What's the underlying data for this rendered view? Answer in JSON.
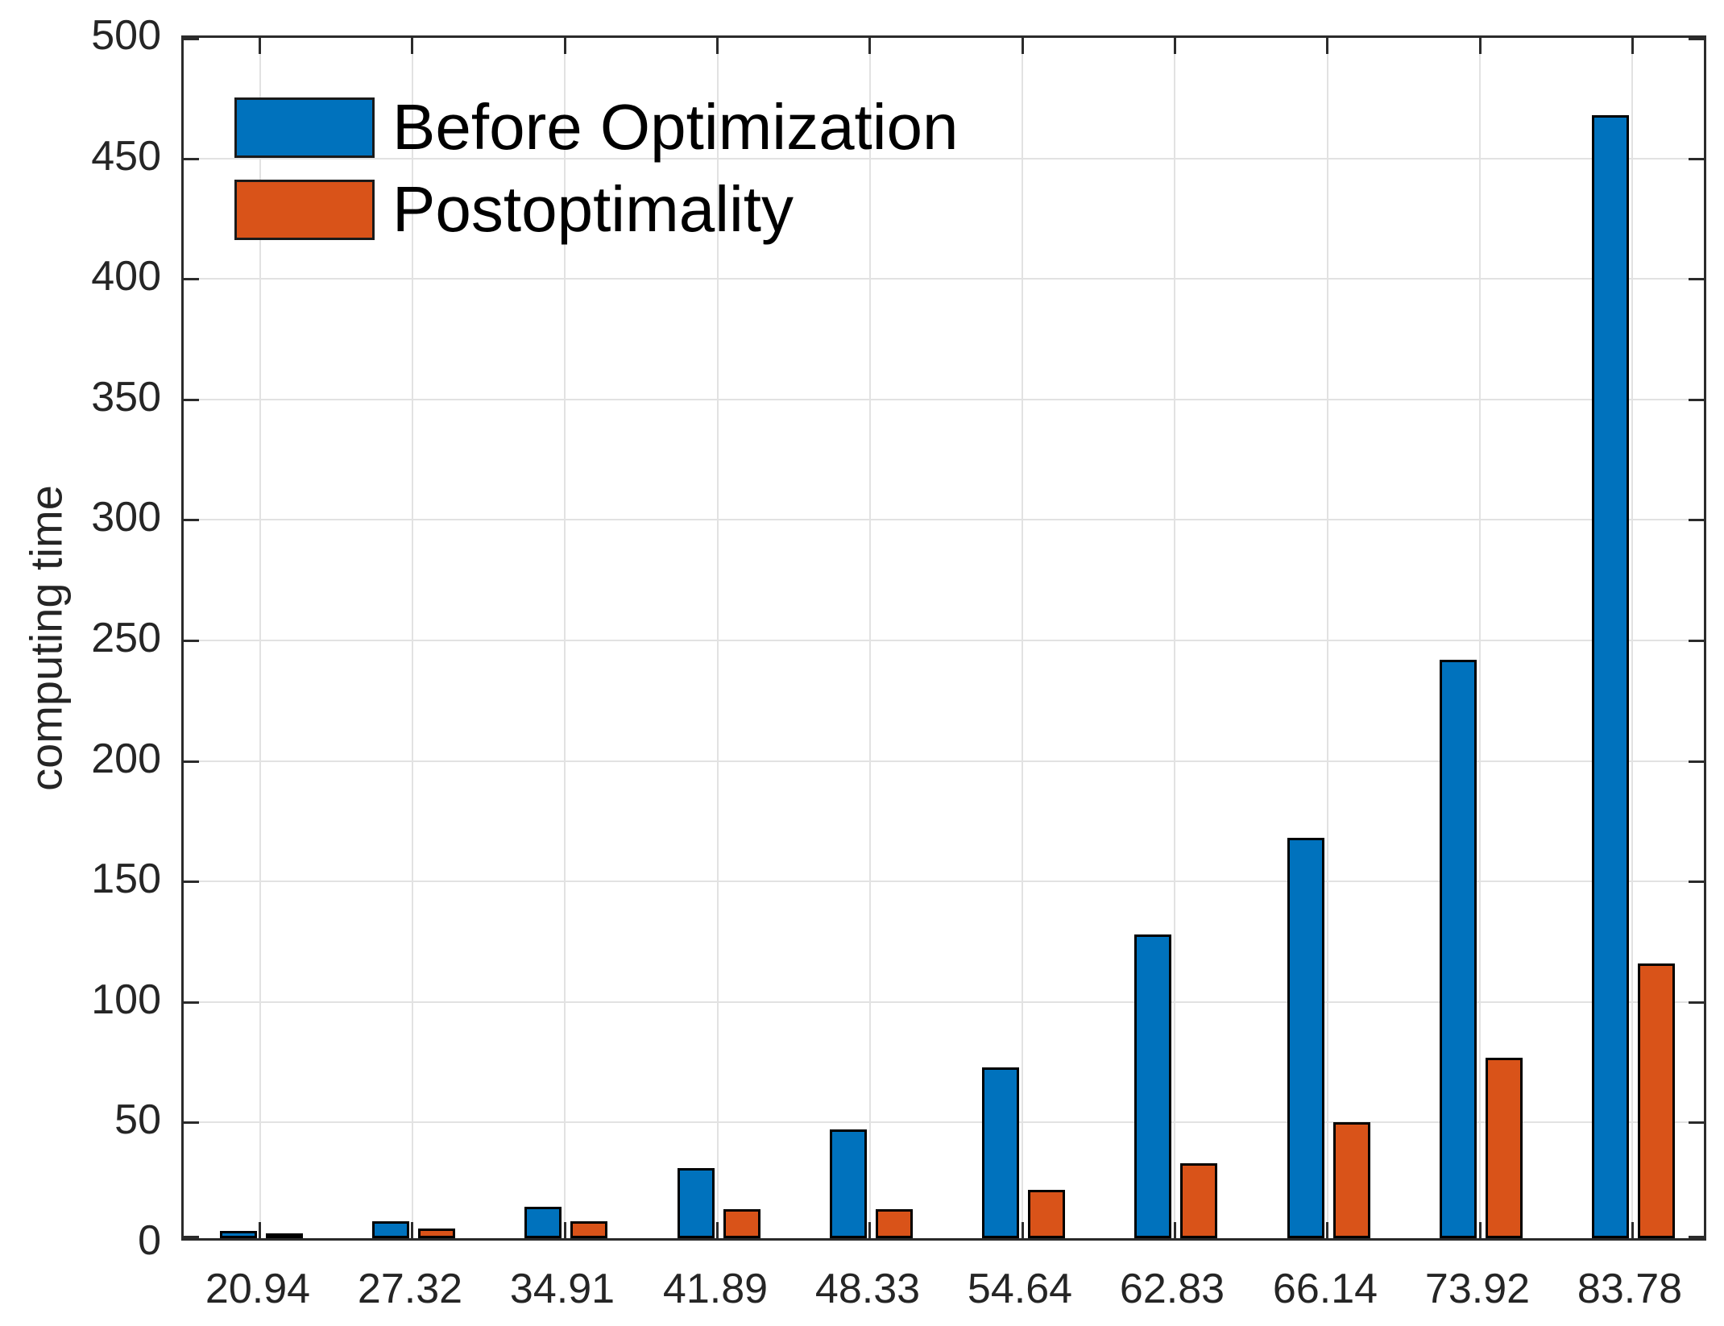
{
  "chart_data": {
    "type": "bar",
    "title": "",
    "ylabel": "computing time",
    "xlabel": "",
    "categories": [
      "20.94",
      "27.32",
      "34.91",
      "41.89",
      "48.33",
      "54.64",
      "62.83",
      "66.14",
      "73.92",
      "83.78"
    ],
    "series": [
      {
        "name": "Before Optimization",
        "color": "#0072BD",
        "values": [
          3,
          7,
          13,
          29,
          45,
          71,
          126,
          166,
          240,
          466
        ]
      },
      {
        "name": "Postoptimality",
        "color": "#D95319",
        "values": [
          2,
          4,
          7,
          12,
          12,
          20,
          31,
          48,
          75,
          114
        ]
      }
    ],
    "ylim": [
      0,
      500
    ],
    "ytick_step": 50,
    "ytick_labels": [
      "0",
      "50",
      "100",
      "150",
      "200",
      "250",
      "300",
      "350",
      "400",
      "450",
      "500"
    ],
    "grid": true,
    "legend_position": "top-left",
    "colors": {
      "grid": "#E2E2E2",
      "axis": "#2B2B2B",
      "tick_label": "#252525",
      "bar_edge": "#000000",
      "background": "#FFFFFF"
    }
  }
}
